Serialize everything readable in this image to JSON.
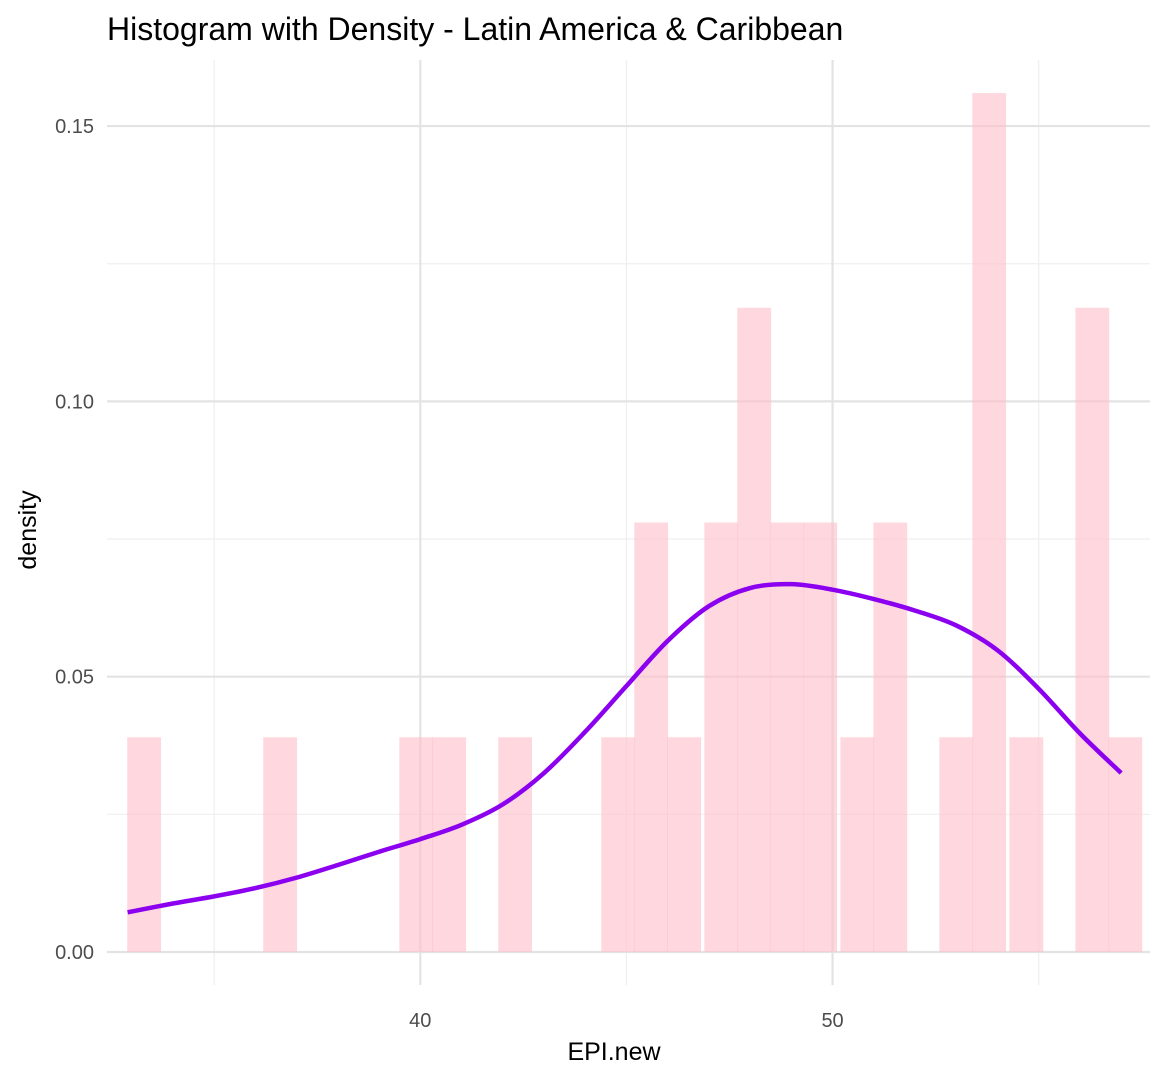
{
  "chart_data": {
    "type": "histogram",
    "title": "Histogram with Density - Latin America & Caribbean",
    "xlabel": "EPI.new",
    "ylabel": "density",
    "xlim": [
      32.4,
      57.7
    ],
    "ylim": [
      -0.006,
      0.162
    ],
    "x_ticks": [
      40,
      50
    ],
    "x_minor_ticks": [
      35,
      45,
      55
    ],
    "y_ticks": [
      0.0,
      0.05,
      0.1,
      0.15
    ],
    "y_tick_labels": [
      "0.00",
      "0.05",
      "0.10",
      "0.15"
    ],
    "y_minor_ticks": [
      0.025,
      0.075,
      0.125
    ],
    "grid": true,
    "histogram": {
      "fill_color": "#FFC0CB",
      "bin_width": 0.82,
      "bins": [
        {
          "x": 33.3,
          "density": 0.039
        },
        {
          "x": 34.1,
          "density": 0
        },
        {
          "x": 34.9,
          "density": 0
        },
        {
          "x": 35.7,
          "density": 0
        },
        {
          "x": 36.6,
          "density": 0.039
        },
        {
          "x": 37.4,
          "density": 0
        },
        {
          "x": 38.2,
          "density": 0
        },
        {
          "x": 39.0,
          "density": 0
        },
        {
          "x": 39.9,
          "density": 0.039
        },
        {
          "x": 40.7,
          "density": 0.039
        },
        {
          "x": 41.5,
          "density": 0
        },
        {
          "x": 42.3,
          "density": 0.039
        },
        {
          "x": 43.1,
          "density": 0
        },
        {
          "x": 44.0,
          "density": 0
        },
        {
          "x": 44.8,
          "density": 0.039
        },
        {
          "x": 45.6,
          "density": 0.078
        },
        {
          "x": 46.4,
          "density": 0.039
        },
        {
          "x": 47.3,
          "density": 0.078
        },
        {
          "x": 48.1,
          "density": 0.117
        },
        {
          "x": 48.9,
          "density": 0.078
        },
        {
          "x": 49.7,
          "density": 0.078
        },
        {
          "x": 50.6,
          "density": 0.039
        },
        {
          "x": 51.4,
          "density": 0.078
        },
        {
          "x": 52.2,
          "density": 0
        },
        {
          "x": 53.0,
          "density": 0.039
        },
        {
          "x": 53.8,
          "density": 0.156
        },
        {
          "x": 54.7,
          "density": 0.039
        },
        {
          "x": 55.5,
          "density": 0
        },
        {
          "x": 56.3,
          "density": 0.117
        },
        {
          "x": 57.1,
          "density": 0.039
        }
      ]
    },
    "density_curve": {
      "color": "#8B00EE",
      "points": [
        [
          32.9,
          0.0072
        ],
        [
          34.0,
          0.0088
        ],
        [
          35.0,
          0.0101
        ],
        [
          36.0,
          0.0116
        ],
        [
          37.0,
          0.0135
        ],
        [
          38.0,
          0.0158
        ],
        [
          39.0,
          0.0182
        ],
        [
          40.0,
          0.0205
        ],
        [
          41.0,
          0.0231
        ],
        [
          42.0,
          0.0268
        ],
        [
          43.0,
          0.0325
        ],
        [
          44.0,
          0.04
        ],
        [
          45.0,
          0.0483
        ],
        [
          46.0,
          0.0565
        ],
        [
          47.0,
          0.0628
        ],
        [
          48.0,
          0.0661
        ],
        [
          49.0,
          0.0668
        ],
        [
          50.0,
          0.0658
        ],
        [
          51.0,
          0.0641
        ],
        [
          52.0,
          0.062
        ],
        [
          53.0,
          0.0593
        ],
        [
          54.0,
          0.0548
        ],
        [
          55.0,
          0.0478
        ],
        [
          56.0,
          0.0397
        ],
        [
          57.0,
          0.0325
        ]
      ]
    }
  }
}
